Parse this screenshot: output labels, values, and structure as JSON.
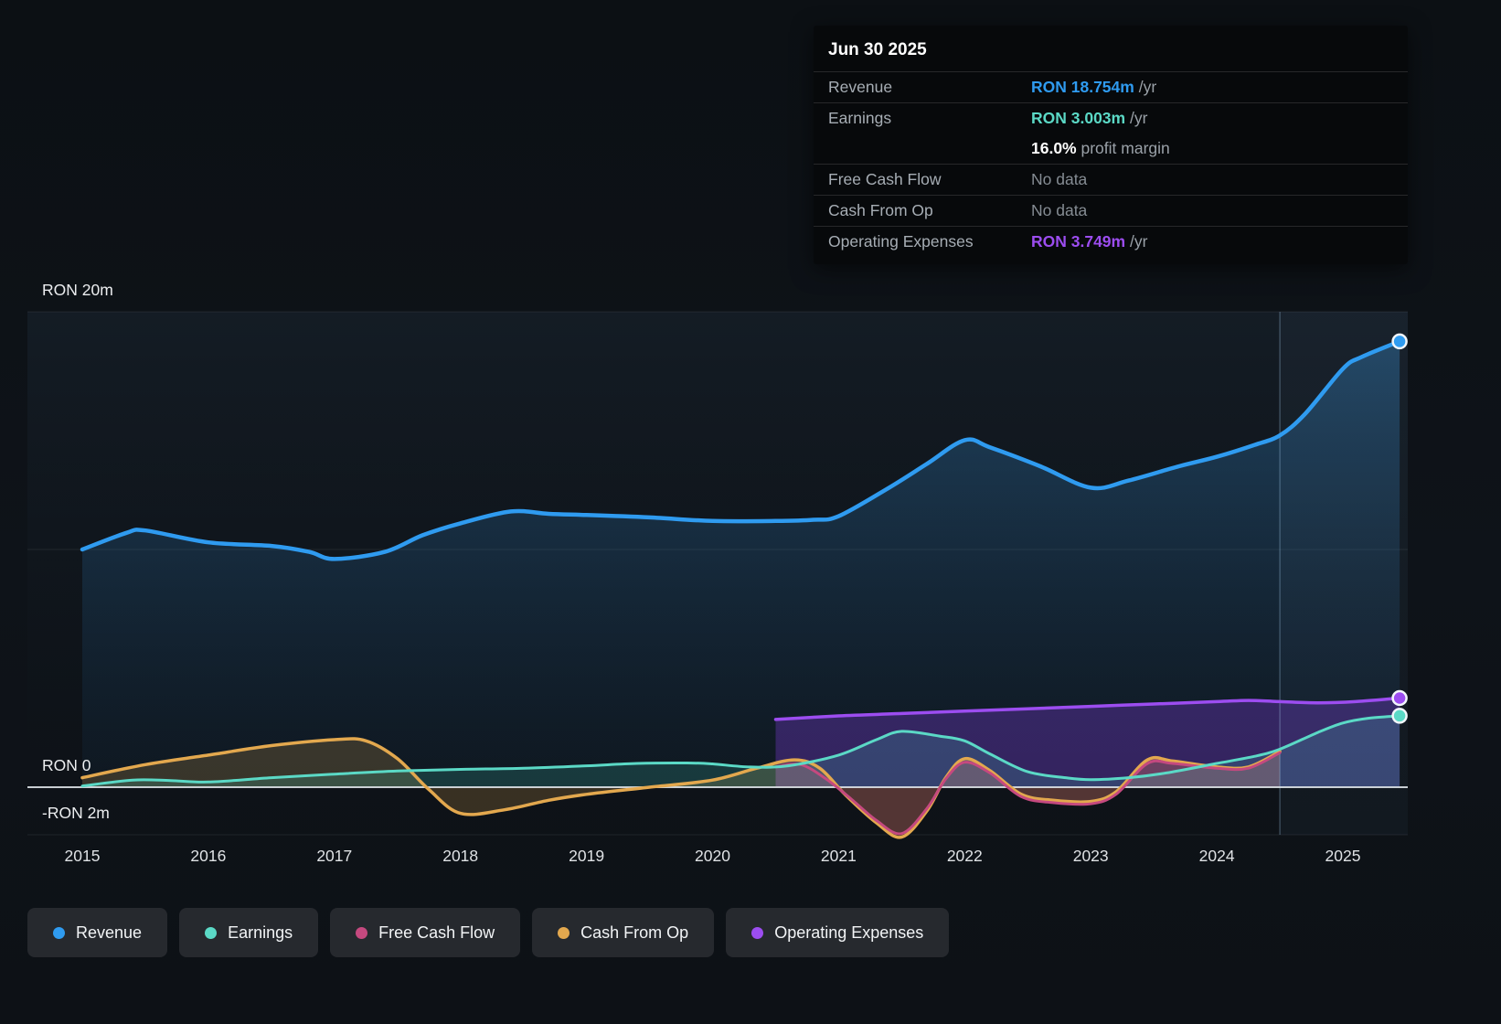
{
  "colors": {
    "revenue": "#2f9bf0",
    "earnings": "#5bd9c6",
    "free_cash_flow": "#c5497f",
    "cash_from_op": "#e3a84e",
    "operating_expenses": "#9c4df0",
    "no_data_gray": "#858c93",
    "white": "#ffffff"
  },
  "tooltip": {
    "date": "Jun 30 2025",
    "rows": [
      {
        "label": "Revenue",
        "value": "RON 18.754m",
        "suffix": " /yr",
        "color_key": "revenue"
      },
      {
        "label": "Earnings",
        "value": "RON 3.003m",
        "suffix": " /yr",
        "color_key": "earnings"
      },
      {
        "label": "",
        "value": "16.0%",
        "suffix": " profit margin",
        "color_key": "white"
      },
      {
        "label": "Free Cash Flow",
        "value": "No data",
        "suffix": "",
        "color_key": "no_data_gray"
      },
      {
        "label": "Cash From Op",
        "value": "No data",
        "suffix": "",
        "color_key": "no_data_gray"
      },
      {
        "label": "Operating Expenses",
        "value": "RON 3.749m",
        "suffix": " /yr",
        "color_key": "operating_expenses"
      }
    ]
  },
  "axis": {
    "y_labels": [
      {
        "text": "RON 20m",
        "value": 20
      },
      {
        "text": "RON 0",
        "value": 0
      },
      {
        "text": "-RON 2m",
        "value": -2
      }
    ],
    "y_gridlines": [
      20,
      10,
      -2
    ],
    "x_labels": [
      {
        "text": "2015",
        "year": 2015
      },
      {
        "text": "2016",
        "year": 2016
      },
      {
        "text": "2017",
        "year": 2017
      },
      {
        "text": "2018",
        "year": 2018
      },
      {
        "text": "2019",
        "year": 2019
      },
      {
        "text": "2020",
        "year": 2020
      },
      {
        "text": "2021",
        "year": 2021
      },
      {
        "text": "2022",
        "year": 2022
      },
      {
        "text": "2023",
        "year": 2023
      },
      {
        "text": "2024",
        "year": 2024
      },
      {
        "text": "2025",
        "year": 2025
      }
    ]
  },
  "legend": [
    {
      "key": "revenue",
      "label": "Revenue"
    },
    {
      "key": "earnings",
      "label": "Earnings"
    },
    {
      "key": "free_cash_flow",
      "label": "Free Cash Flow"
    },
    {
      "key": "cash_from_op",
      "label": "Cash From Op"
    },
    {
      "key": "operating_expenses",
      "label": "Operating Expenses"
    }
  ],
  "chart_data": {
    "type": "area",
    "x_unit": "year",
    "y_unit": "RON millions",
    "ylim": [
      -2,
      20
    ],
    "x_range": [
      2015,
      2025.5
    ],
    "past_future_divider_year": 2024.5,
    "grid": true,
    "legend_position": "bottom",
    "series": [
      {
        "key": "revenue",
        "name": "Revenue",
        "end_value_label": "RON 18.754m /yr",
        "points": [
          [
            2015.0,
            10.0
          ],
          [
            2015.35,
            10.7
          ],
          [
            2015.5,
            10.8
          ],
          [
            2016.0,
            10.3
          ],
          [
            2016.5,
            10.15
          ],
          [
            2016.8,
            9.9
          ],
          [
            2017.0,
            9.6
          ],
          [
            2017.4,
            9.9
          ],
          [
            2017.7,
            10.6
          ],
          [
            2018.0,
            11.1
          ],
          [
            2018.4,
            11.6
          ],
          [
            2018.7,
            11.5
          ],
          [
            2019.0,
            11.45
          ],
          [
            2019.5,
            11.35
          ],
          [
            2020.0,
            11.2
          ],
          [
            2020.5,
            11.2
          ],
          [
            2020.8,
            11.25
          ],
          [
            2021.0,
            11.4
          ],
          [
            2021.4,
            12.6
          ],
          [
            2021.7,
            13.6
          ],
          [
            2022.0,
            14.6
          ],
          [
            2022.2,
            14.3
          ],
          [
            2022.6,
            13.5
          ],
          [
            2023.0,
            12.6
          ],
          [
            2023.3,
            12.9
          ],
          [
            2023.7,
            13.5
          ],
          [
            2024.0,
            13.9
          ],
          [
            2024.3,
            14.4
          ],
          [
            2024.5,
            14.8
          ],
          [
            2024.7,
            15.7
          ],
          [
            2025.0,
            17.6
          ],
          [
            2025.15,
            18.1
          ],
          [
            2025.45,
            18.754
          ]
        ]
      },
      {
        "key": "earnings",
        "name": "Earnings",
        "end_value_label": "RON 3.003m /yr",
        "points": [
          [
            2015.0,
            0.05
          ],
          [
            2015.4,
            0.3
          ],
          [
            2015.7,
            0.28
          ],
          [
            2016.0,
            0.22
          ],
          [
            2016.5,
            0.4
          ],
          [
            2017.0,
            0.55
          ],
          [
            2017.5,
            0.68
          ],
          [
            2018.0,
            0.75
          ],
          [
            2018.5,
            0.8
          ],
          [
            2019.0,
            0.9
          ],
          [
            2019.4,
            1.0
          ],
          [
            2019.8,
            1.02
          ],
          [
            2020.0,
            0.98
          ],
          [
            2020.3,
            0.85
          ],
          [
            2020.6,
            0.9
          ],
          [
            2021.0,
            1.35
          ],
          [
            2021.3,
            2.0
          ],
          [
            2021.5,
            2.35
          ],
          [
            2021.8,
            2.15
          ],
          [
            2022.0,
            1.95
          ],
          [
            2022.2,
            1.4
          ],
          [
            2022.5,
            0.65
          ],
          [
            2022.8,
            0.4
          ],
          [
            2023.0,
            0.32
          ],
          [
            2023.3,
            0.4
          ],
          [
            2023.6,
            0.6
          ],
          [
            2024.0,
            1.0
          ],
          [
            2024.3,
            1.3
          ],
          [
            2024.5,
            1.6
          ],
          [
            2024.8,
            2.3
          ],
          [
            2025.0,
            2.7
          ],
          [
            2025.2,
            2.9
          ],
          [
            2025.45,
            3.003
          ]
        ]
      },
      {
        "key": "cash_from_op",
        "name": "Cash From Op",
        "end_value_label": "No data",
        "points": [
          [
            2015.0,
            0.4
          ],
          [
            2015.5,
            0.95
          ],
          [
            2016.0,
            1.35
          ],
          [
            2016.5,
            1.75
          ],
          [
            2017.0,
            2.0
          ],
          [
            2017.25,
            1.95
          ],
          [
            2017.5,
            1.2
          ],
          [
            2017.75,
            -0.1
          ],
          [
            2018.0,
            -1.1
          ],
          [
            2018.35,
            -0.95
          ],
          [
            2018.7,
            -0.55
          ],
          [
            2019.0,
            -0.3
          ],
          [
            2019.5,
            0.0
          ],
          [
            2020.0,
            0.3
          ],
          [
            2020.35,
            0.8
          ],
          [
            2020.65,
            1.15
          ],
          [
            2020.85,
            0.8
          ],
          [
            2021.05,
            -0.3
          ],
          [
            2021.3,
            -1.5
          ],
          [
            2021.5,
            -2.1
          ],
          [
            2021.7,
            -1.0
          ],
          [
            2021.85,
            0.4
          ],
          [
            2022.0,
            1.2
          ],
          [
            2022.2,
            0.7
          ],
          [
            2022.45,
            -0.3
          ],
          [
            2022.7,
            -0.55
          ],
          [
            2023.0,
            -0.6
          ],
          [
            2023.2,
            -0.2
          ],
          [
            2023.45,
            1.15
          ],
          [
            2023.65,
            1.1
          ],
          [
            2024.0,
            0.85
          ],
          [
            2024.25,
            0.85
          ],
          [
            2024.5,
            1.5
          ]
        ]
      },
      {
        "key": "free_cash_flow",
        "name": "Free Cash Flow",
        "end_value_label": "No data",
        "points": [
          [
            2020.5,
            0.85
          ],
          [
            2020.7,
            0.95
          ],
          [
            2020.9,
            0.35
          ],
          [
            2021.1,
            -0.5
          ],
          [
            2021.3,
            -1.4
          ],
          [
            2021.5,
            -1.95
          ],
          [
            2021.7,
            -0.9
          ],
          [
            2021.85,
            0.35
          ],
          [
            2022.0,
            1.05
          ],
          [
            2022.2,
            0.6
          ],
          [
            2022.45,
            -0.4
          ],
          [
            2022.7,
            -0.65
          ],
          [
            2023.0,
            -0.7
          ],
          [
            2023.2,
            -0.3
          ],
          [
            2023.45,
            1.0
          ],
          [
            2023.65,
            1.0
          ],
          [
            2024.0,
            0.8
          ],
          [
            2024.25,
            0.8
          ],
          [
            2024.5,
            1.45
          ]
        ]
      },
      {
        "key": "operating_expenses",
        "name": "Operating Expenses",
        "end_value_label": "RON 3.749m /yr",
        "points": [
          [
            2020.5,
            2.85
          ],
          [
            2021.0,
            3.0
          ],
          [
            2021.5,
            3.1
          ],
          [
            2022.0,
            3.2
          ],
          [
            2022.5,
            3.3
          ],
          [
            2023.0,
            3.4
          ],
          [
            2023.5,
            3.5
          ],
          [
            2024.0,
            3.6
          ],
          [
            2024.25,
            3.65
          ],
          [
            2024.5,
            3.6
          ],
          [
            2024.8,
            3.55
          ],
          [
            2025.1,
            3.6
          ],
          [
            2025.45,
            3.749
          ]
        ]
      }
    ]
  }
}
